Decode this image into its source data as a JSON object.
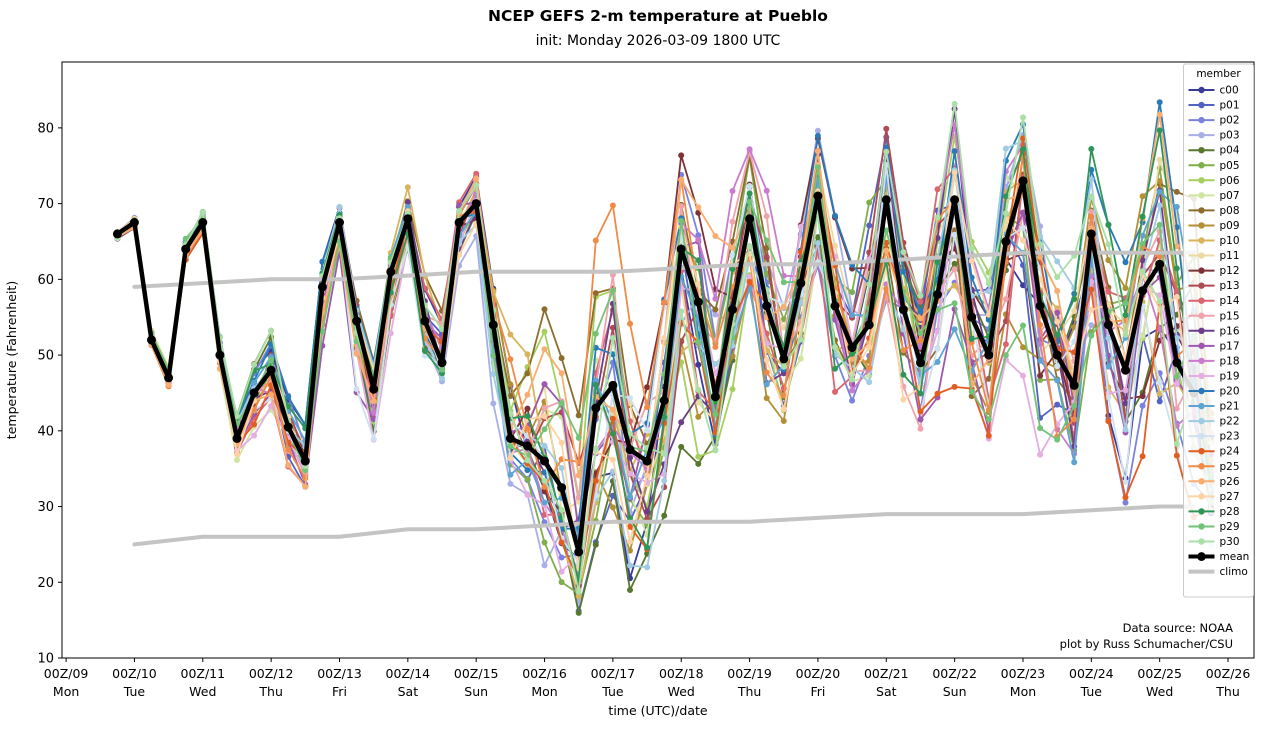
{
  "chart_data": {
    "type": "line",
    "title": "NCEP GEFS 2-m temperature at Pueblo",
    "subtitle": "init: Monday 2026-03-09 1800 UTC",
    "xlabel": "time (UTC)/date",
    "ylabel": "temperature (Fahrenheit)",
    "ylim": [
      10,
      88.7
    ],
    "xlim_days": [
      8.94,
      26.38
    ],
    "yticks": [
      10,
      20,
      30,
      40,
      50,
      60,
      70,
      80
    ],
    "xticks": [
      {
        "day": 9,
        "utc_label": "00Z/09",
        "weekday": "Mon"
      },
      {
        "day": 10,
        "utc_label": "00Z/10",
        "weekday": "Tue"
      },
      {
        "day": 11,
        "utc_label": "00Z/11",
        "weekday": "Wed"
      },
      {
        "day": 12,
        "utc_label": "00Z/12",
        "weekday": "Thu"
      },
      {
        "day": 13,
        "utc_label": "00Z/13",
        "weekday": "Fri"
      },
      {
        "day": 14,
        "utc_label": "00Z/14",
        "weekday": "Sat"
      },
      {
        "day": 15,
        "utc_label": "00Z/15",
        "weekday": "Sun"
      },
      {
        "day": 16,
        "utc_label": "00Z/16",
        "weekday": "Mon"
      },
      {
        "day": 17,
        "utc_label": "00Z/17",
        "weekday": "Tue"
      },
      {
        "day": 18,
        "utc_label": "00Z/18",
        "weekday": "Wed"
      },
      {
        "day": 19,
        "utc_label": "00Z/19",
        "weekday": "Thu"
      },
      {
        "day": 20,
        "utc_label": "00Z/20",
        "weekday": "Fri"
      },
      {
        "day": 21,
        "utc_label": "00Z/21",
        "weekday": "Sat"
      },
      {
        "day": 22,
        "utc_label": "00Z/22",
        "weekday": "Sun"
      },
      {
        "day": 23,
        "utc_label": "00Z/23",
        "weekday": "Mon"
      },
      {
        "day": 24,
        "utc_label": "00Z/24",
        "weekday": "Tue"
      },
      {
        "day": 25,
        "utc_label": "00Z/25",
        "weekday": "Wed"
      },
      {
        "day": 26,
        "utc_label": "00Z/26",
        "weekday": "Thu"
      }
    ],
    "legend_title": "member",
    "annotation_lines": [
      "Data source: NOAA",
      "plot by Russ Schumacher/CSU"
    ],
    "time": {
      "start_day": 9.75,
      "step_days": 0.25,
      "n_member_points": 65,
      "n_mean_points": 64
    },
    "mean_series": [
      66,
      67.5,
      52,
      47,
      64,
      67.5,
      50,
      39,
      45,
      48,
      40.5,
      36,
      59,
      67.5,
      54.5,
      45.5,
      61,
      68,
      54.5,
      49,
      67.5,
      70,
      54,
      39,
      38,
      36,
      32.5,
      24,
      43,
      46,
      37.5,
      36,
      44,
      64,
      57,
      44.5,
      56,
      68,
      56.5,
      49.5,
      59.5,
      71,
      56.5,
      51,
      54,
      70.5,
      56,
      49,
      58,
      70.5,
      55,
      50,
      65,
      73,
      56.5,
      50,
      46,
      66,
      54,
      48,
      58.5,
      62,
      49,
      45
    ],
    "envelope_min": [
      65,
      66.5,
      50.5,
      45.5,
      62.5,
      66,
      48,
      36,
      38,
      40,
      34,
      31.5,
      50,
      63.5,
      43.5,
      33,
      51,
      63.5,
      49.5,
      46,
      61.5,
      65.5,
      43,
      32.5,
      30,
      21.5,
      17.5,
      13.5,
      24,
      26,
      18,
      19.5,
      28,
      36.5,
      34.5,
      36.5,
      43,
      53,
      42.5,
      40.5,
      47,
      56,
      42.5,
      34.5,
      39,
      51.5,
      41,
      36,
      41,
      44.5,
      38,
      33,
      44,
      45.5,
      35,
      27.5,
      28,
      35.5,
      33.5,
      29,
      35.5,
      31,
      29.5,
      25.5,
      23.5
    ],
    "envelope_max": [
      66.5,
      68.5,
      53.5,
      48.5,
      65.5,
      69.5,
      52.5,
      44.5,
      49.5,
      53.5,
      45,
      41,
      62.5,
      70,
      58.5,
      52,
      64.5,
      72.5,
      62,
      58,
      70.5,
      74.5,
      60.5,
      53.5,
      54,
      59,
      50.5,
      44,
      66.5,
      71,
      55,
      54,
      63.5,
      78,
      73,
      70,
      76.5,
      79.5,
      72.5,
      66,
      73,
      82,
      69,
      62.5,
      71,
      81.5,
      68.5,
      60.5,
      74,
      85.5,
      69,
      63,
      79,
      85,
      72.5,
      65.5,
      68.5,
      79.5,
      71,
      63,
      72.5,
      84.5,
      78.5,
      72,
      46
    ],
    "late_center": 34,
    "climo": {
      "days": [
        10,
        11,
        12,
        13,
        14,
        15,
        16,
        17,
        18,
        19,
        20,
        21,
        22,
        23,
        24,
        25,
        25.5
      ],
      "upper": [
        59,
        59.5,
        60,
        60,
        60.5,
        61,
        61,
        61,
        61.5,
        62,
        62,
        62.5,
        63,
        63.5,
        63.5,
        63.5,
        63.5
      ],
      "lower": [
        25,
        26,
        26,
        26,
        27,
        27,
        27.5,
        28,
        28,
        28,
        28.5,
        29,
        29,
        29,
        29.5,
        30,
        30
      ]
    },
    "members": [
      {
        "id": "c00",
        "color": "#3b3b98"
      },
      {
        "id": "p01",
        "color": "#5263c3"
      },
      {
        "id": "p02",
        "color": "#7b82dd"
      },
      {
        "id": "p03",
        "color": "#a9aee8"
      },
      {
        "id": "p04",
        "color": "#58772f"
      },
      {
        "id": "p05",
        "color": "#7fae4a"
      },
      {
        "id": "p06",
        "color": "#a6cf5f"
      },
      {
        "id": "p07",
        "color": "#cfe5a0"
      },
      {
        "id": "p08",
        "color": "#8c6d2d"
      },
      {
        "id": "p09",
        "color": "#b38f35"
      },
      {
        "id": "p10",
        "color": "#d8b45c"
      },
      {
        "id": "p11",
        "color": "#ecd9a4"
      },
      {
        "id": "p12",
        "color": "#7c3237"
      },
      {
        "id": "p13",
        "color": "#af4a50"
      },
      {
        "id": "p14",
        "color": "#da6570"
      },
      {
        "id": "p15",
        "color": "#efa3ac"
      },
      {
        "id": "p16",
        "color": "#6c3e88"
      },
      {
        "id": "p17",
        "color": "#9d57ae"
      },
      {
        "id": "p18",
        "color": "#c97ccd"
      },
      {
        "id": "p19",
        "color": "#e4aee0"
      },
      {
        "id": "p20",
        "color": "#2a7ab9"
      },
      {
        "id": "p21",
        "color": "#5da4d2"
      },
      {
        "id": "p22",
        "color": "#a0cbe2"
      },
      {
        "id": "p23",
        "color": "#cfe1ef"
      },
      {
        "id": "p24",
        "color": "#e25d22"
      },
      {
        "id": "p25",
        "color": "#f18a46"
      },
      {
        "id": "p26",
        "color": "#f9ad70"
      },
      {
        "id": "p27",
        "color": "#fdd3a5"
      },
      {
        "id": "p28",
        "color": "#2f9658"
      },
      {
        "id": "p29",
        "color": "#72c377"
      },
      {
        "id": "p30",
        "color": "#abdfa8"
      }
    ],
    "mean_style": {
      "label": "mean",
      "color": "#000000"
    },
    "climo_style": {
      "label": "climo",
      "color": "#c4c4c4"
    },
    "synthesis": {
      "persist": 0.72,
      "step": 1.1,
      "amp": 0.95,
      "seed": 12345
    }
  }
}
